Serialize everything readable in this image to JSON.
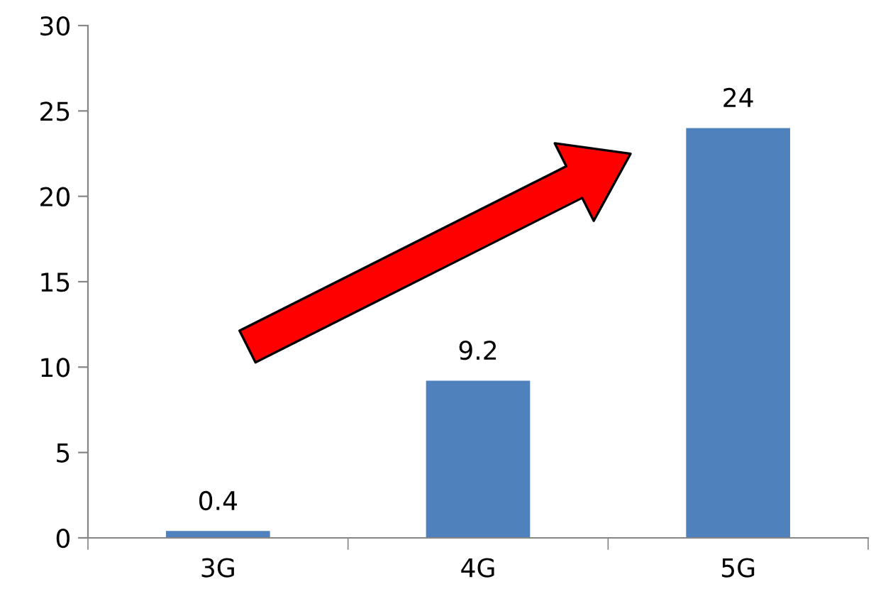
{
  "chart_data": {
    "type": "bar",
    "categories": [
      "3G",
      "4G",
      "5G"
    ],
    "values": [
      0.4,
      9.2,
      24
    ],
    "color": "#4f81bd",
    "ylim": [
      0,
      30
    ],
    "yticks": [
      0,
      5,
      10,
      15,
      20,
      25,
      30
    ],
    "data_labels": true,
    "grid": false,
    "legend": false
  }
}
